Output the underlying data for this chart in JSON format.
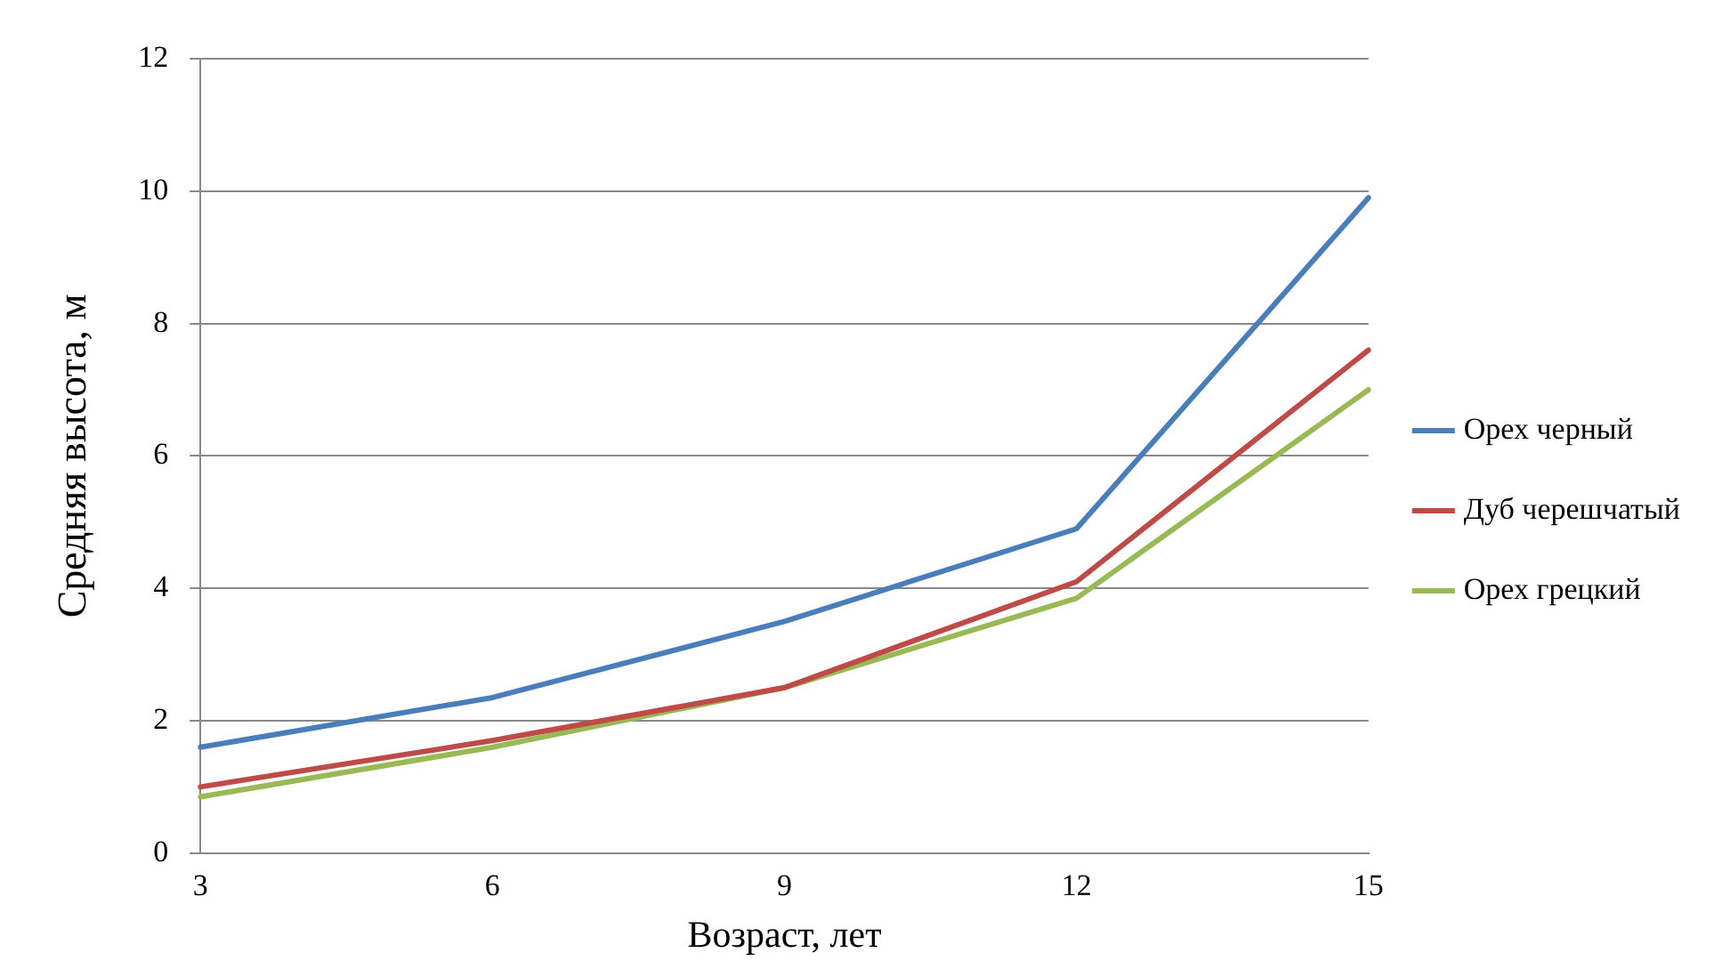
{
  "chart_data": {
    "type": "line",
    "xlabel": "Возраст, лет",
    "ylabel": "Средняя высота, м",
    "categories": [
      "3",
      "6",
      "9",
      "12",
      "15"
    ],
    "series": [
      {
        "name": "Орех черный",
        "color": "#4a7ebb",
        "values": [
          1.6,
          2.35,
          3.5,
          4.9,
          9.9
        ]
      },
      {
        "name": "Дуб черешчатый",
        "color": "#be4b48",
        "values": [
          1.0,
          1.7,
          2.5,
          4.1,
          7.6
        ]
      },
      {
        "name": "Орех грецкий",
        "color": "#98b954",
        "values": [
          0.85,
          1.6,
          2.5,
          3.85,
          7.0
        ]
      }
    ],
    "ylim": [
      0,
      12
    ],
    "yticks": [
      0,
      2,
      4,
      6,
      8,
      10,
      12
    ],
    "grid": "y",
    "legend": "right",
    "marker": "none",
    "line_style": "solid"
  }
}
